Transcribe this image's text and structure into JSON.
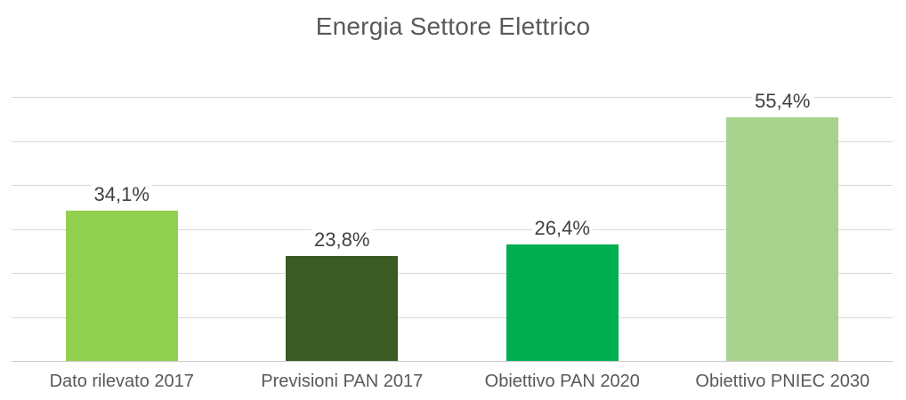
{
  "title": "Energia Settore Elettrico",
  "chart_data": {
    "type": "bar",
    "title": "Energia Settore Elettrico",
    "categories": [
      "Dato rilevato 2017",
      "Previsioni PAN 2017",
      "Obiettivo PAN 2020",
      "Obiettivo PNIEC 2030"
    ],
    "values": [
      34.1,
      23.8,
      26.4,
      55.4
    ],
    "value_labels": [
      "34,1%",
      "23,8%",
      "26,4%",
      "55,4%"
    ],
    "bar_colors": [
      "#92d050",
      "#3a5b23",
      "#00b050",
      "#a9d18e"
    ],
    "xlabel": "",
    "ylabel": "",
    "ylim": [
      0,
      60
    ],
    "grid_step": 10,
    "grid": true,
    "y_tick_labels_visible": false,
    "legend": false,
    "data_labels": "outside-end"
  },
  "colors": {
    "background": "#ffffff",
    "title_text": "#595959",
    "data_label_text": "#404040",
    "category_text": "#595959",
    "gridline": "#d9d9d9",
    "axis_line": "#c9c9c9"
  }
}
